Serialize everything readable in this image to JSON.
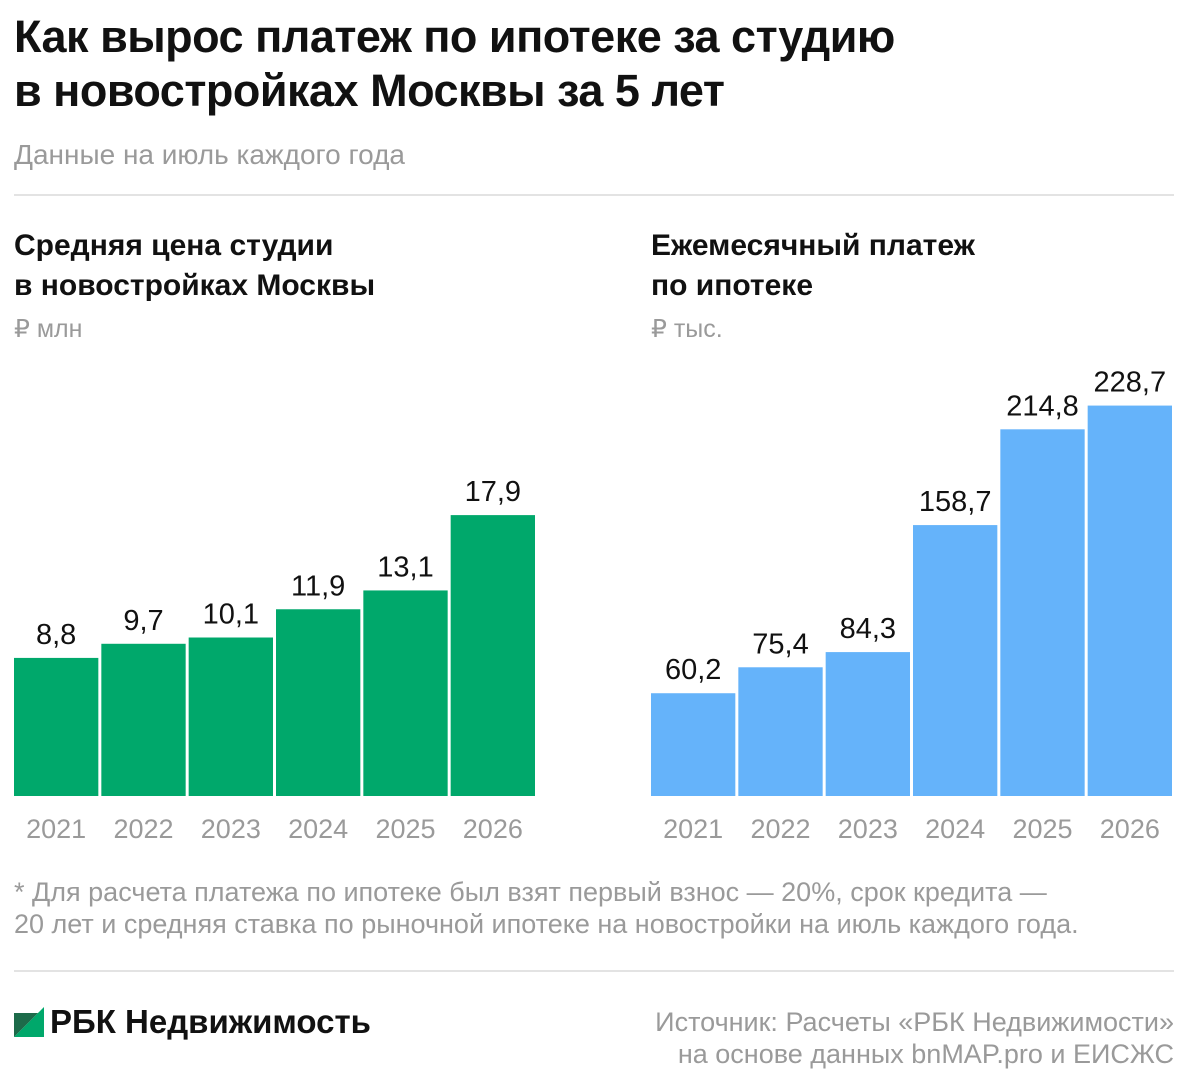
{
  "header": {
    "title_line1": "Как вырос платеж по ипотеке за студию",
    "title_line2": "в новостройках Москвы за 5 лет",
    "subtitle": "Данные на июль каждого года"
  },
  "left": {
    "title_line1": "Средняя цена студии",
    "title_line2": "в новостройках Москвы",
    "unit": "₽ млн"
  },
  "right": {
    "title_line1": "Ежемесячный платеж",
    "title_line2": "по ипотеке",
    "unit": "₽ тыс."
  },
  "chart_data": [
    {
      "type": "bar",
      "title": "Средняя цена студии в новостройках Москвы",
      "ylabel": "₽ млн",
      "categories": [
        "2021",
        "2022",
        "2023",
        "2024",
        "2025",
        "2026"
      ],
      "values": [
        8.8,
        9.7,
        10.1,
        11.9,
        13.1,
        17.9
      ],
      "value_labels": [
        "8,8",
        "9,7",
        "10,1",
        "11,9",
        "13,1",
        "17,9"
      ],
      "ylim": [
        0,
        26
      ],
      "color": "#00a86b",
      "grid": false
    },
    {
      "type": "bar",
      "title": "Ежемесячный платеж по ипотеке",
      "ylabel": "₽ тыс.",
      "categories": [
        "2021",
        "2022",
        "2023",
        "2024",
        "2025",
        "2026"
      ],
      "values": [
        60.2,
        75.4,
        84.3,
        158.7,
        214.8,
        228.7
      ],
      "value_labels": [
        "60,2",
        "75,4",
        "84,3",
        "158,7",
        "214,8",
        "228,7"
      ],
      "ylim": [
        0,
        239
      ],
      "color": "#65b3fa",
      "grid": false
    }
  ],
  "footnote": {
    "line1": "* Для расчета платежа по ипотеке был взят первый взнос — 20%, срок кредита —",
    "line2": "20 лет и средняя ставка по рыночной ипотеке на новостройки на июль каждого года."
  },
  "brand": {
    "name": "РБК Недвижимость",
    "logo_colors": [
      "#00a86b",
      "#1d6b4a"
    ]
  },
  "source": {
    "line1": "Источник: Расчеты «РБК Недвижимости»",
    "line2": "на основе данных bnMAP.pro и ЕИСЖС"
  }
}
